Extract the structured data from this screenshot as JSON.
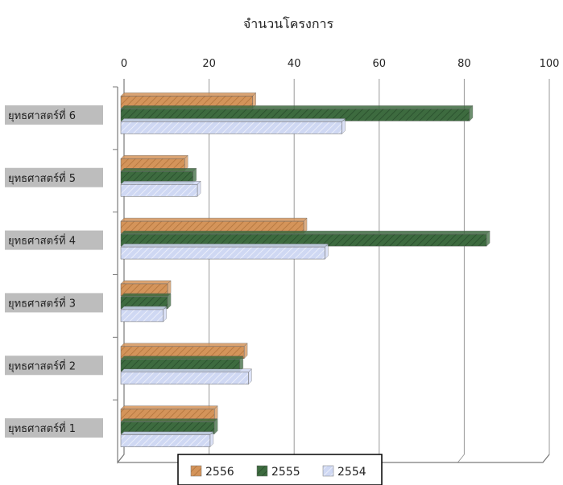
{
  "chart_data": {
    "type": "bar",
    "orientation": "horizontal",
    "title": "จำนวนโครงการ",
    "xlabel": "",
    "ylabel": "",
    "xlim": [
      0,
      100
    ],
    "x_ticks": [
      0,
      20,
      40,
      60,
      80,
      100
    ],
    "grid": true,
    "legend_position": "bottom",
    "categories": [
      "ยุทธศาสตร์ที่ 1",
      "ยุทธศาสตร์ที่ 2",
      "ยุทธศาสตร์ที่ 3",
      "ยุทธศาสตร์ที่ 4",
      "ยุทธศาสตร์ที่ 5",
      "ยุทธศาสตร์ที่ 6"
    ],
    "series": [
      {
        "name": "2556",
        "color": "#d4945a",
        "values": [
          22,
          29,
          11,
          43,
          15,
          31
        ]
      },
      {
        "name": "2555",
        "color": "#3d6b3f",
        "values": [
          22,
          28,
          11,
          86,
          17,
          82
        ]
      },
      {
        "name": "2554",
        "color": "#cfd8f3",
        "values": [
          21,
          30,
          10,
          48,
          18,
          52
        ]
      }
    ]
  }
}
